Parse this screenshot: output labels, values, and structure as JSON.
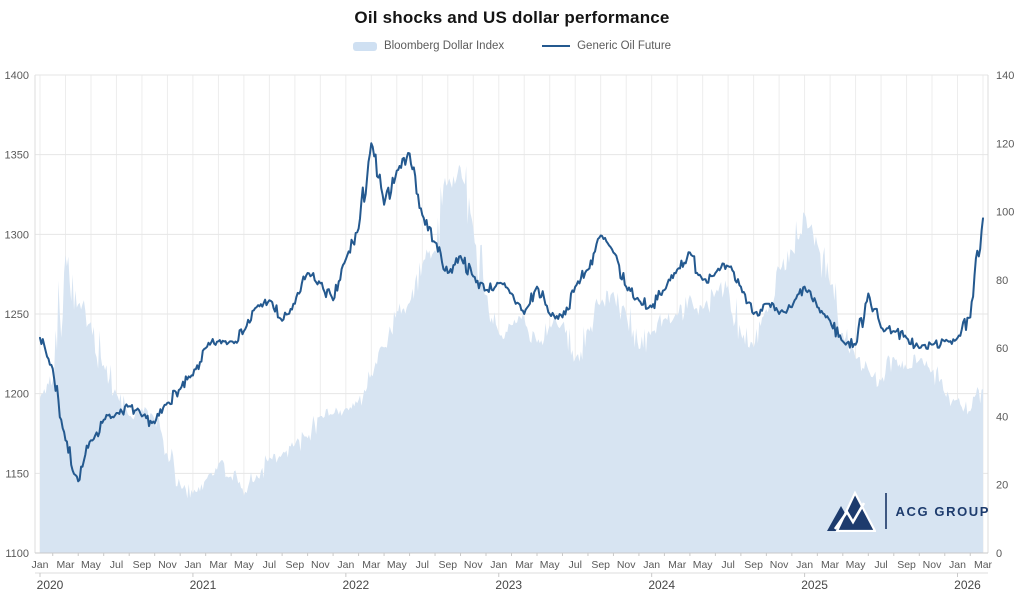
{
  "title": "Oil shocks and US dollar performance",
  "legend": {
    "area_label": "Bloomberg Dollar Index",
    "line_label": "Generic Oil Future"
  },
  "brand": {
    "name": "ACG GROUP"
  },
  "colors": {
    "area_fill": "#d7e4f2",
    "legend_area_swatch": "#cfe0f2",
    "line": "#24598f",
    "grid_h": "#e6e6e6",
    "grid_v": "#ededed",
    "axis_line": "#c9c9c9",
    "tick_text": "#5a5a5a",
    "year_text": "#474747",
    "logo_navy": "#1d3b6d"
  },
  "chart_data": {
    "type": "line",
    "title": "Oil shocks and US dollar performance",
    "x": {
      "start": "2020-01",
      "end": "2026-03",
      "interval": "monthly",
      "month_tick_cycle": [
        "Jan",
        "Mar",
        "May",
        "Jul",
        "Sep",
        "Nov"
      ],
      "year_labels": [
        "2020",
        "2021",
        "2022",
        "2023",
        "2024",
        "2025",
        "2026"
      ]
    },
    "axes": {
      "left": {
        "min": 1100,
        "max": 1400,
        "step": 50,
        "ticks": [
          "1100",
          "1150",
          "1200",
          "1250",
          "1300",
          "1350",
          "1400"
        ]
      },
      "right": {
        "min": 0,
        "max": 140,
        "step": 20,
        "ticks": [
          "0",
          "20",
          "40",
          "60",
          "80",
          "100",
          "120",
          "140"
        ]
      }
    },
    "legend_position": "top",
    "grid": true,
    "series": [
      {
        "name": "Bloomberg Dollar Index",
        "type": "area",
        "axis": "left",
        "color": "#d7e4f2",
        "values": [
          1197,
          1208,
          1287,
          1256,
          1245,
          1218,
          1200,
          1186,
          1191,
          1184,
          1162,
          1143,
          1137,
          1146,
          1156,
          1148,
          1136,
          1149,
          1160,
          1162,
          1168,
          1172,
          1186,
          1187,
          1191,
          1196,
          1212,
          1229,
          1252,
          1257,
          1281,
          1290,
          1332,
          1342,
          1304,
          1262,
          1238,
          1243,
          1248,
          1232,
          1243,
          1244,
          1222,
          1241,
          1257,
          1264,
          1250,
          1228,
          1239,
          1247,
          1249,
          1262,
          1253,
          1263,
          1268,
          1238,
          1229,
          1253,
          1279,
          1290,
          1313,
          1294,
          1268,
          1238,
          1222,
          1215,
          1208,
          1223,
          1216,
          1221,
          1214,
          1200,
          1196,
          1189,
          1203
        ]
      },
      {
        "name": "Generic Oil Future",
        "type": "line",
        "axis": "right",
        "color": "#24598f",
        "values": [
          63,
          54,
          33,
          21,
          33,
          39,
          41,
          43,
          40,
          38,
          44,
          48,
          52,
          60,
          62,
          62,
          65,
          72,
          74,
          68,
          73,
          82,
          79,
          74,
          86,
          95,
          120,
          102,
          112,
          117,
          99,
          91,
          82,
          87,
          81,
          77,
          79,
          76,
          70,
          78,
          70,
          69,
          78,
          83,
          93,
          88,
          78,
          74,
          72,
          77,
          83,
          88,
          80,
          82,
          84,
          78,
          70,
          73,
          70,
          72,
          78,
          72,
          68,
          62,
          61,
          76,
          66,
          65,
          63,
          60,
          61,
          62,
          63,
          69,
          98
        ]
      }
    ]
  }
}
